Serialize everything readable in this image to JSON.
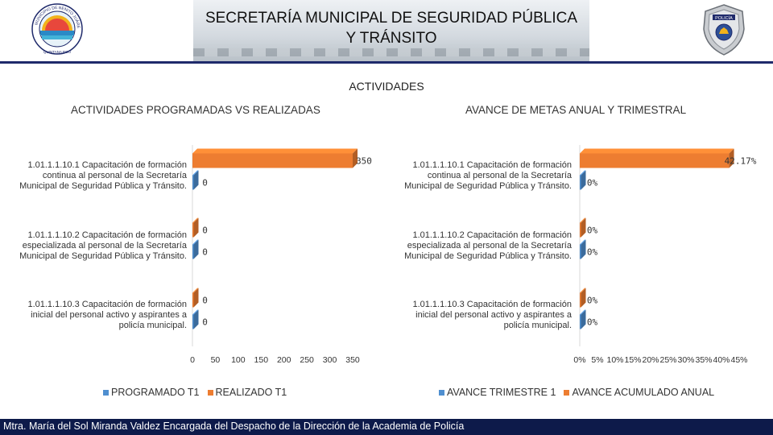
{
  "header": {
    "title_line1": "SECRETARÍA MUNICIPAL DE SEGURIDAD PÚBLICA",
    "title_line2": "Y TRÁNSITO",
    "logo_left_text": "MUNICIPIO DE BENITO JUÁREZ · QUINTANA ROO",
    "logo_right_text": "POLICÍA"
  },
  "section_title": "ACTIVIDADES",
  "colors": {
    "blue": "#4f8fd0",
    "orange": "#ed7d31",
    "navy": "#1f2a6b",
    "footer": "#0d1a4a"
  },
  "chart_data": [
    {
      "type": "bar",
      "orientation": "horizontal",
      "title": "ACTIVIDADES PROGRAMADAS VS REALIZADAS",
      "categories": [
        "1.01.1.1.10.1 Capacitación de formación continua al personal de la Secretaría Municipal de Seguridad Pública y Tránsito.",
        "1.01.1.1.10.2 Capacitación de formación especializada al personal de la Secretaría Municipal de Seguridad Pública y Tránsito.",
        "1.01.1.1.10.3 Capacitación de formación inicial del personal activo y aspirantes a policía municipal."
      ],
      "category_lines": [
        [
          "1.01.1.1.10.1 Capacitación de formación",
          "continua al personal de la Secretaría",
          "Municipal de Seguridad Pública y Tránsito."
        ],
        [
          "1.01.1.1.10.2 Capacitación de formación",
          "especializada al personal de la Secretaría",
          "Municipal de Seguridad Pública y Tránsito."
        ],
        [
          "1.01.1.1.10.3 Capacitación de formación",
          "inicial del personal activo y aspirantes a",
          "policía municipal."
        ]
      ],
      "series": [
        {
          "name": "PROGRAMADO T1",
          "color": "#4f8fd0",
          "values": [
            0,
            0,
            0
          ],
          "labels": [
            "0",
            "0",
            "0"
          ]
        },
        {
          "name": "REALIZADO T1",
          "color": "#ed7d31",
          "values": [
            350,
            0,
            0
          ],
          "labels": [
            "350",
            "0",
            "0"
          ]
        }
      ],
      "xlim": [
        0,
        350
      ],
      "xticks": [
        "0",
        "50",
        "100",
        "150",
        "200",
        "250",
        "300",
        "350"
      ],
      "legend_position": "bottom"
    },
    {
      "type": "bar",
      "orientation": "horizontal",
      "title": "AVANCE DE METAS ANUAL Y TRIMESTRAL",
      "categories": [
        "1.01.1.1.10.1 Capacitación de formación continua al personal de la Secretaría Municipal de Seguridad Pública y Tránsito.",
        "1.01.1.1.10.2 Capacitación de formación especializada al personal de la Secretaría Municipal de Seguridad Pública y Tránsito.",
        "1.01.1.1.10.3 Capacitación de formación inicial del personal activo y aspirantes a policía municipal."
      ],
      "category_lines": [
        [
          "1.01.1.1.10.1 Capacitación de formación",
          "continua al personal de la Secretaría",
          "Municipal de Seguridad Pública y Tránsito."
        ],
        [
          "1.01.1.1.10.2 Capacitación de formación",
          "especializada al personal de la Secretaría",
          "Municipal de Seguridad Pública y Tránsito."
        ],
        [
          "1.01.1.1.10.3 Capacitación de formación",
          "inicial del personal activo y aspirantes a",
          "policía municipal."
        ]
      ],
      "series": [
        {
          "name": "AVANCE TRIMESTRE 1",
          "color": "#4f8fd0",
          "values": [
            0,
            0,
            0
          ],
          "labels": [
            "0%",
            "0%",
            "0%"
          ]
        },
        {
          "name": "AVANCE ACUMULADO ANUAL",
          "color": "#ed7d31",
          "values": [
            42.17,
            0,
            0
          ],
          "labels": [
            "42.17%",
            "0%",
            "0%"
          ]
        }
      ],
      "xlim": [
        0,
        45
      ],
      "xticks": [
        "0%",
        "5%",
        "10%",
        "15%",
        "20%",
        "25%",
        "30%",
        "35%",
        "40%",
        "45%"
      ],
      "legend_position": "bottom"
    }
  ],
  "footer": {
    "text": "Mtra. María del Sol Miranda Valdez Encargada del Despacho de la Dirección de la Academia de Policía"
  }
}
